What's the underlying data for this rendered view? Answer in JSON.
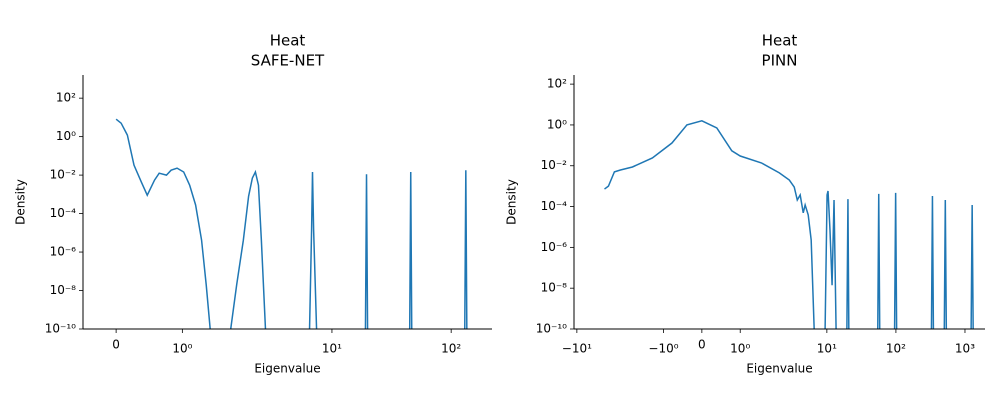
{
  "chart_data": [
    {
      "type": "line",
      "title": "Heat",
      "subtitle": "SAFE-NET",
      "x_label": "Eigenvalue",
      "y_label": "Density",
      "color": "#1f77b4",
      "xscale": "symlog",
      "linthresh": 2,
      "yscale": "log",
      "xlim": [
        -0.5,
        220
      ],
      "ylim": [
        1e-10,
        1600
      ],
      "xticks": [
        0,
        {
          "value": 1,
          "label": "10⁰"
        },
        {
          "value": 10,
          "label": "10¹"
        },
        {
          "value": 100,
          "label": "10²"
        }
      ],
      "yticks": [
        {
          "value": 1e-10,
          "label": "10⁻¹⁰"
        },
        {
          "value": 1e-08,
          "label": "10⁻⁸"
        },
        {
          "value": 1e-06,
          "label": "10⁻⁶"
        },
        {
          "value": 0.0001,
          "label": "10⁻⁴"
        },
        {
          "value": 0.01,
          "label": "10⁻²"
        },
        {
          "value": 1,
          "label": "10⁰"
        },
        {
          "value": 100,
          "label": "10²"
        }
      ],
      "x": [
        0,
        0.076,
        0.17,
        0.27,
        0.38,
        0.47,
        0.58,
        0.65,
        0.76,
        0.83,
        0.92,
        1.02,
        1.11,
        1.2,
        1.29,
        1.36,
        1.42,
        null,
        1.73,
        1.82,
        1.92,
        2.0,
        2.15,
        2.28,
        2.42,
        2.56,
        2.77,
        null,
        6.49,
        6.75,
        6.87,
        7.02,
        7.43,
        null,
        19.1,
        19.5,
        19.9,
        null,
        44.9,
        45.8,
        46.7,
        null,
        130,
        132.7,
        135.3
      ],
      "values": [
        8.1,
        5.0,
        1.2,
        0.033,
        0.0044,
        0.0009,
        0.0055,
        0.0126,
        0.01,
        0.018,
        0.023,
        0.0145,
        0.003,
        0.00028,
        4.2e-06,
        2e-08,
        1e-10,
        null,
        1e-10,
        2e-08,
        4e-06,
        0.0008,
        0.007,
        0.0145,
        0.003,
        4e-06,
        1e-10,
        null,
        1e-10,
        1.4e-05,
        0.0145,
        1.4e-05,
        1e-10,
        null,
        1e-10,
        0.011,
        1e-10,
        null,
        1e-10,
        0.0145,
        1e-10,
        null,
        1e-10,
        0.018,
        1e-10
      ]
    },
    {
      "type": "line",
      "title": "Heat",
      "subtitle": "PINN",
      "x_label": "Eigenvalue",
      "y_label": "Density",
      "color": "#1f77b4",
      "xscale": "symlog",
      "linthresh": 2,
      "yscale": "log",
      "xlim": [
        -11,
        1950
      ],
      "ylim": [
        1e-10,
        280
      ],
      "xticks": [
        {
          "value": -10,
          "label": "−10¹"
        },
        {
          "value": -1,
          "label": "−10⁰"
        },
        0,
        {
          "value": 1,
          "label": "10⁰"
        },
        {
          "value": 10,
          "label": "10¹"
        },
        {
          "value": 100,
          "label": "10²"
        },
        {
          "value": 1000,
          "label": "10³"
        }
      ],
      "yticks": [
        {
          "value": 1e-10,
          "label": "10⁻¹⁰"
        },
        {
          "value": 1e-08,
          "label": "10⁻⁸"
        },
        {
          "value": 1e-06,
          "label": "10⁻⁶"
        },
        {
          "value": 0.0001,
          "label": "10⁻⁴"
        },
        {
          "value": 0.01,
          "label": "10⁻²"
        },
        {
          "value": 1,
          "label": "10⁰"
        },
        {
          "value": 100,
          "label": "10²"
        }
      ],
      "x": [
        -3.98,
        -3.49,
        -2.86,
        -2.34,
        -1.81,
        -1.29,
        -0.78,
        -0.39,
        0,
        0.39,
        0.78,
        1.0,
        1.55,
        2.05,
        2.86,
        3.37,
        3.73,
        4.11,
        4.55,
        4.85,
        5.37,
        5.93,
        6.55,
        null,
        9.43,
        10.07,
        10.4,
        11.1,
        11.9,
        12.7,
        13.6,
        null,
        19.5,
        20.2,
        20.8,
        null,
        54.6,
        56.4,
        58.3,
        null,
        95.7,
        99.1,
        102.4,
        null,
        327,
        338,
        349,
        null,
        502,
        519,
        537,
        null,
        1228,
        1271,
        1314
      ],
      "values": [
        0.00072,
        0.001,
        0.005,
        0.0062,
        0.0087,
        0.024,
        0.13,
        1.0,
        1.6,
        0.71,
        0.054,
        0.03,
        0.0138,
        0.0045,
        0.002,
        0.0009,
        0.00021,
        0.00037,
        4.9e-05,
        0.00012,
        3.9e-05,
        2.3e-06,
        1e-10,
        null,
        1e-10,
        0.00037,
        0.00058,
        7e-06,
        1.4e-08,
        0.00021,
        1e-10,
        null,
        1e-10,
        0.00023,
        1e-10,
        null,
        1e-10,
        0.00042,
        1e-10,
        null,
        1e-10,
        0.00047,
        1e-10,
        null,
        1e-10,
        0.00033,
        1e-10,
        null,
        1e-10,
        0.00021,
        1e-10,
        null,
        1e-10,
        0.00012,
        1e-10
      ]
    }
  ]
}
